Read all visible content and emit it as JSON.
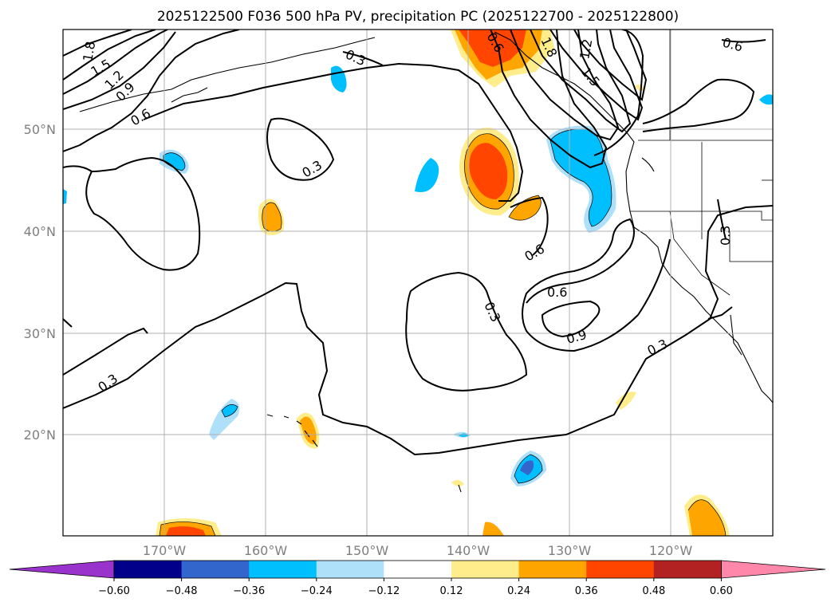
{
  "title": "2025122500 F036 500 hPa PV, precipitation PC (2025122700 - 2025122800)",
  "lat_labels": [
    "50°N",
    "40°N",
    "30°N",
    "20°N"
  ],
  "lon_labels": [
    "170°W",
    "160°W",
    "150°W",
    "140°W",
    "130°W",
    "120°W"
  ],
  "contour_labels": [
    "1.8",
    "1.5",
    "1.2",
    "0.9",
    "0.6",
    "0.3",
    "0.3",
    "0.6",
    "1.8",
    "1.2",
    "1.5",
    "0.6",
    "0.3",
    "0.6",
    "0.6",
    "0.9",
    "0.3",
    "0.3",
    "0.3"
  ],
  "colorbar": {
    "ticks": [
      "−0.60",
      "−0.48",
      "−0.36",
      "−0.24",
      "−0.12",
      "0.12",
      "0.24",
      "0.36",
      "0.48",
      "0.60"
    ],
    "colors": [
      "#9933cc",
      "#00008b",
      "#3366cc",
      "#00bfff",
      "#afe0fa",
      "#ffffff",
      "#ffec8b",
      "#ffa500",
      "#ff4500",
      "#b22222",
      "#ff88aa"
    ]
  }
}
